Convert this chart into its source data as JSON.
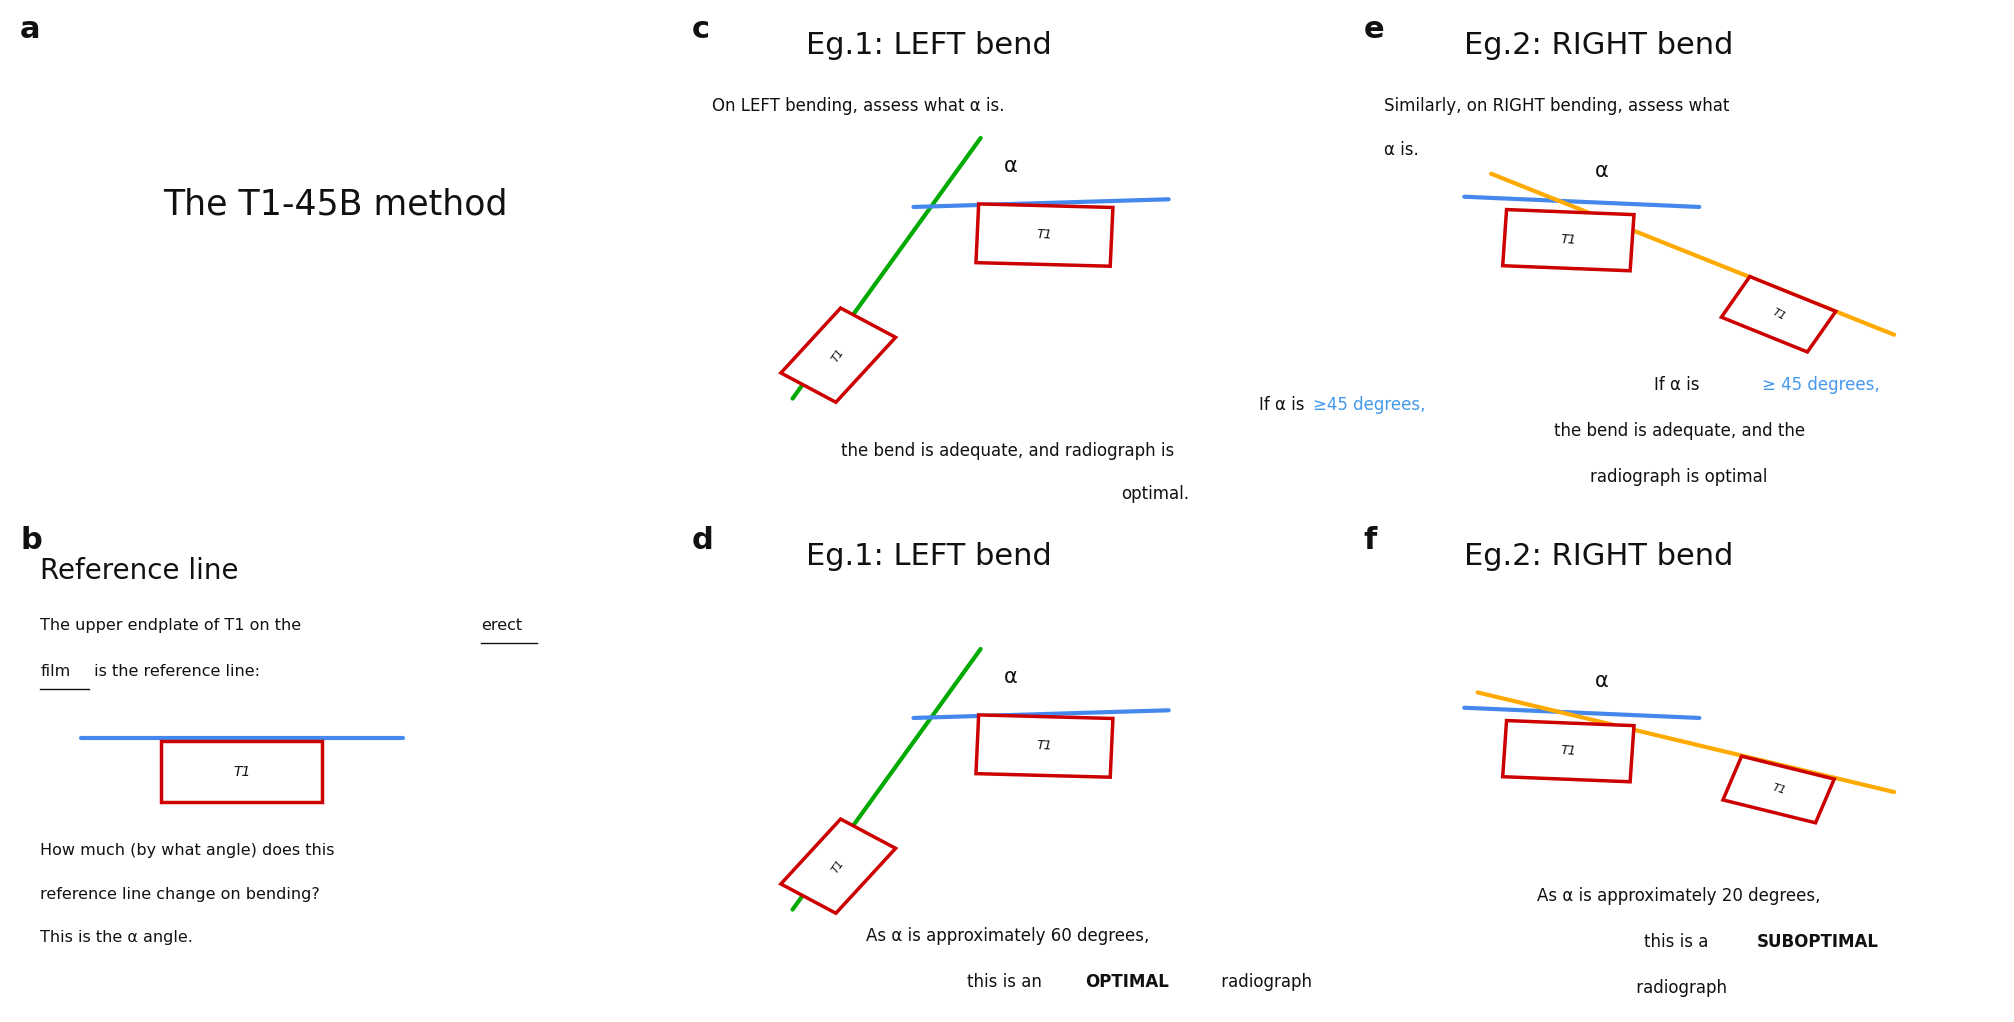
{
  "bg_color": "#ffffff",
  "col_green": "#00aa00",
  "col_blue": "#4488ee",
  "col_red": "#cc0000",
  "col_orange": "#ffaa00",
  "col_black": "#111111",
  "col_highlight": "#4499ee",
  "panel_labels": [
    "a",
    "b",
    "c",
    "d",
    "e",
    "f"
  ]
}
